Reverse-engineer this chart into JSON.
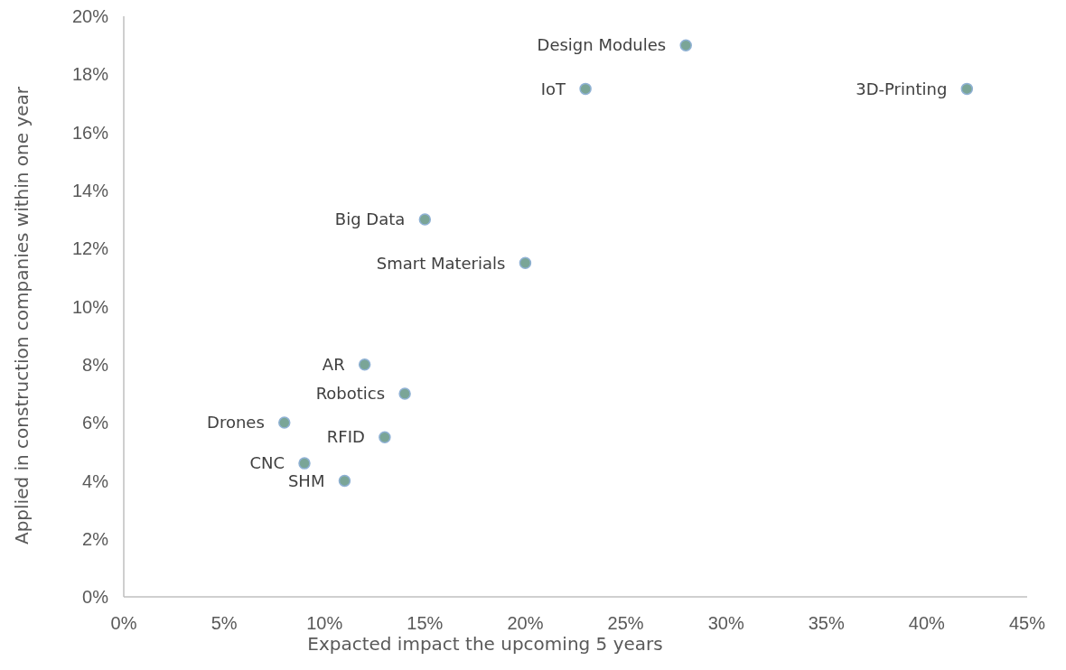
{
  "chart_data": {
    "type": "scatter",
    "xlabel": "Expacted impact the upcoming 5 years",
    "ylabel": "Applied in construction companies within one year",
    "x": [
      28,
      23,
      42,
      15,
      20,
      12,
      14,
      8,
      13,
      9,
      11
    ],
    "values": [
      19,
      17.5,
      17.5,
      13,
      11.5,
      8,
      7,
      6,
      5.5,
      4.6,
      4
    ],
    "color": "#7aa597",
    "marker": "circle",
    "xlim": [
      0,
      45
    ],
    "xticks": [
      {
        "value": 0,
        "label": "0%"
      },
      {
        "value": 5,
        "label": "5%"
      },
      {
        "value": 10,
        "label": "10%"
      },
      {
        "value": 15,
        "label": "15%"
      },
      {
        "value": 20,
        "label": "20%"
      },
      {
        "value": 25,
        "label": "25%"
      },
      {
        "value": 30,
        "label": "30%"
      },
      {
        "value": 35,
        "label": "35%"
      },
      {
        "value": 40,
        "label": "40%"
      },
      {
        "value": 45,
        "label": "45%"
      }
    ],
    "ylim": [
      0,
      20
    ],
    "yticks": [
      {
        "value": 0,
        "label": "0%"
      },
      {
        "value": 2,
        "label": "2%"
      },
      {
        "value": 4,
        "label": "4%"
      },
      {
        "value": 6,
        "label": "6%"
      },
      {
        "value": 8,
        "label": "8%"
      },
      {
        "value": 10,
        "label": "10%"
      },
      {
        "value": 12,
        "label": "12%"
      },
      {
        "value": 14,
        "label": "14%"
      },
      {
        "value": 16,
        "label": "16%"
      },
      {
        "value": 18,
        "label": "18%"
      },
      {
        "value": 20,
        "label": "20%"
      }
    ],
    "annotations": [
      {
        "text": "Design Modules",
        "x": 28,
        "y": 19
      },
      {
        "text": "IoT",
        "x": 23,
        "y": 17.5
      },
      {
        "text": "3D-Printing",
        "x": 42,
        "y": 17.5
      },
      {
        "text": "Big Data",
        "x": 15,
        "y": 13
      },
      {
        "text": "Smart Materials",
        "x": 20,
        "y": 11.5
      },
      {
        "text": "AR",
        "x": 12,
        "y": 8
      },
      {
        "text": "Robotics",
        "x": 14,
        "y": 7
      },
      {
        "text": "Drones",
        "x": 8,
        "y": 6
      },
      {
        "text": "RFID",
        "x": 13,
        "y": 5.5
      },
      {
        "text": "CNC",
        "x": 9,
        "y": 4.6
      },
      {
        "text": "SHM",
        "x": 11,
        "y": 4
      }
    ]
  }
}
